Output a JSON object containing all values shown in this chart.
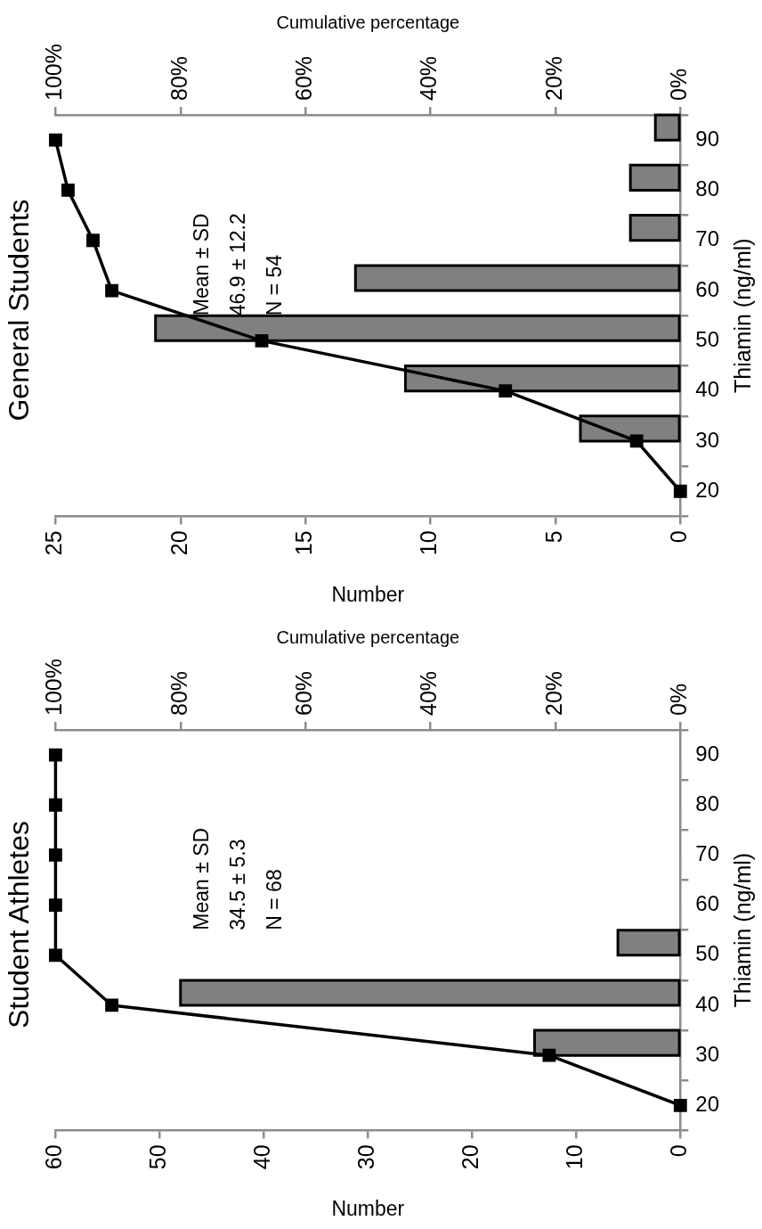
{
  "chart_data": [
    {
      "type": "bar",
      "orientation": "horizontal",
      "title": "General Students",
      "ylabel": "Thiamin (ng/ml)",
      "xlabel": "Number",
      "x2label": "Cumulative percentage",
      "categories": [
        "90",
        "80",
        "70",
        "60",
        "50",
        "40",
        "30",
        "20"
      ],
      "series": [
        {
          "color": "#808080",
          "values": [
            1,
            2,
            2,
            13,
            21,
            11,
            4,
            0
          ]
        },
        {
          "type": "line",
          "axis": "x2",
          "color": "#000000",
          "values": [
            100,
            98,
            94,
            91,
            67,
            28,
            7,
            0
          ]
        }
      ],
      "xlim": [
        25,
        0
      ],
      "xticks": [
        25,
        20,
        15,
        10,
        5,
        0
      ],
      "x2lim": [
        100,
        0
      ],
      "x2ticks": [
        {
          "value": 100,
          "label": "100%"
        },
        {
          "value": 80,
          "label": "80%"
        },
        {
          "value": 60,
          "label": "60%"
        },
        {
          "value": 40,
          "label": "40%"
        },
        {
          "value": 20,
          "label": "20%"
        },
        {
          "value": 0,
          "label": "0%"
        }
      ],
      "marker": "square",
      "legend": false,
      "annotations": [
        "Mean ± SD",
        "46.9 ± 12.2",
        "N = 54"
      ]
    },
    {
      "type": "bar",
      "orientation": "horizontal",
      "title": "Student Athletes",
      "ylabel": "Thiamin (ng/ml)",
      "xlabel": "Number",
      "x2label": "Cumulative percentage",
      "categories": [
        "90",
        "80",
        "70",
        "60",
        "50",
        "40",
        "30",
        "20"
      ],
      "series": [
        {
          "color": "#808080",
          "values": [
            0,
            0,
            0,
            0,
            6,
            48,
            14,
            0
          ]
        },
        {
          "type": "line",
          "axis": "x2",
          "color": "#000000",
          "values": [
            100,
            100,
            100,
            100,
            100,
            91,
            21,
            0
          ]
        }
      ],
      "xlim": [
        60,
        0
      ],
      "xticks": [
        60,
        50,
        40,
        30,
        20,
        10,
        0
      ],
      "x2lim": [
        100,
        0
      ],
      "x2ticks": [
        {
          "value": 100,
          "label": "100%"
        },
        {
          "value": 80,
          "label": "80%"
        },
        {
          "value": 60,
          "label": "60%"
        },
        {
          "value": 40,
          "label": "40%"
        },
        {
          "value": 20,
          "label": "20%"
        },
        {
          "value": 0,
          "label": "0%"
        }
      ],
      "marker": "square",
      "legend": false,
      "annotations": [
        "Mean ± SD",
        "34.5 ± 5.3",
        "N = 68"
      ]
    }
  ]
}
